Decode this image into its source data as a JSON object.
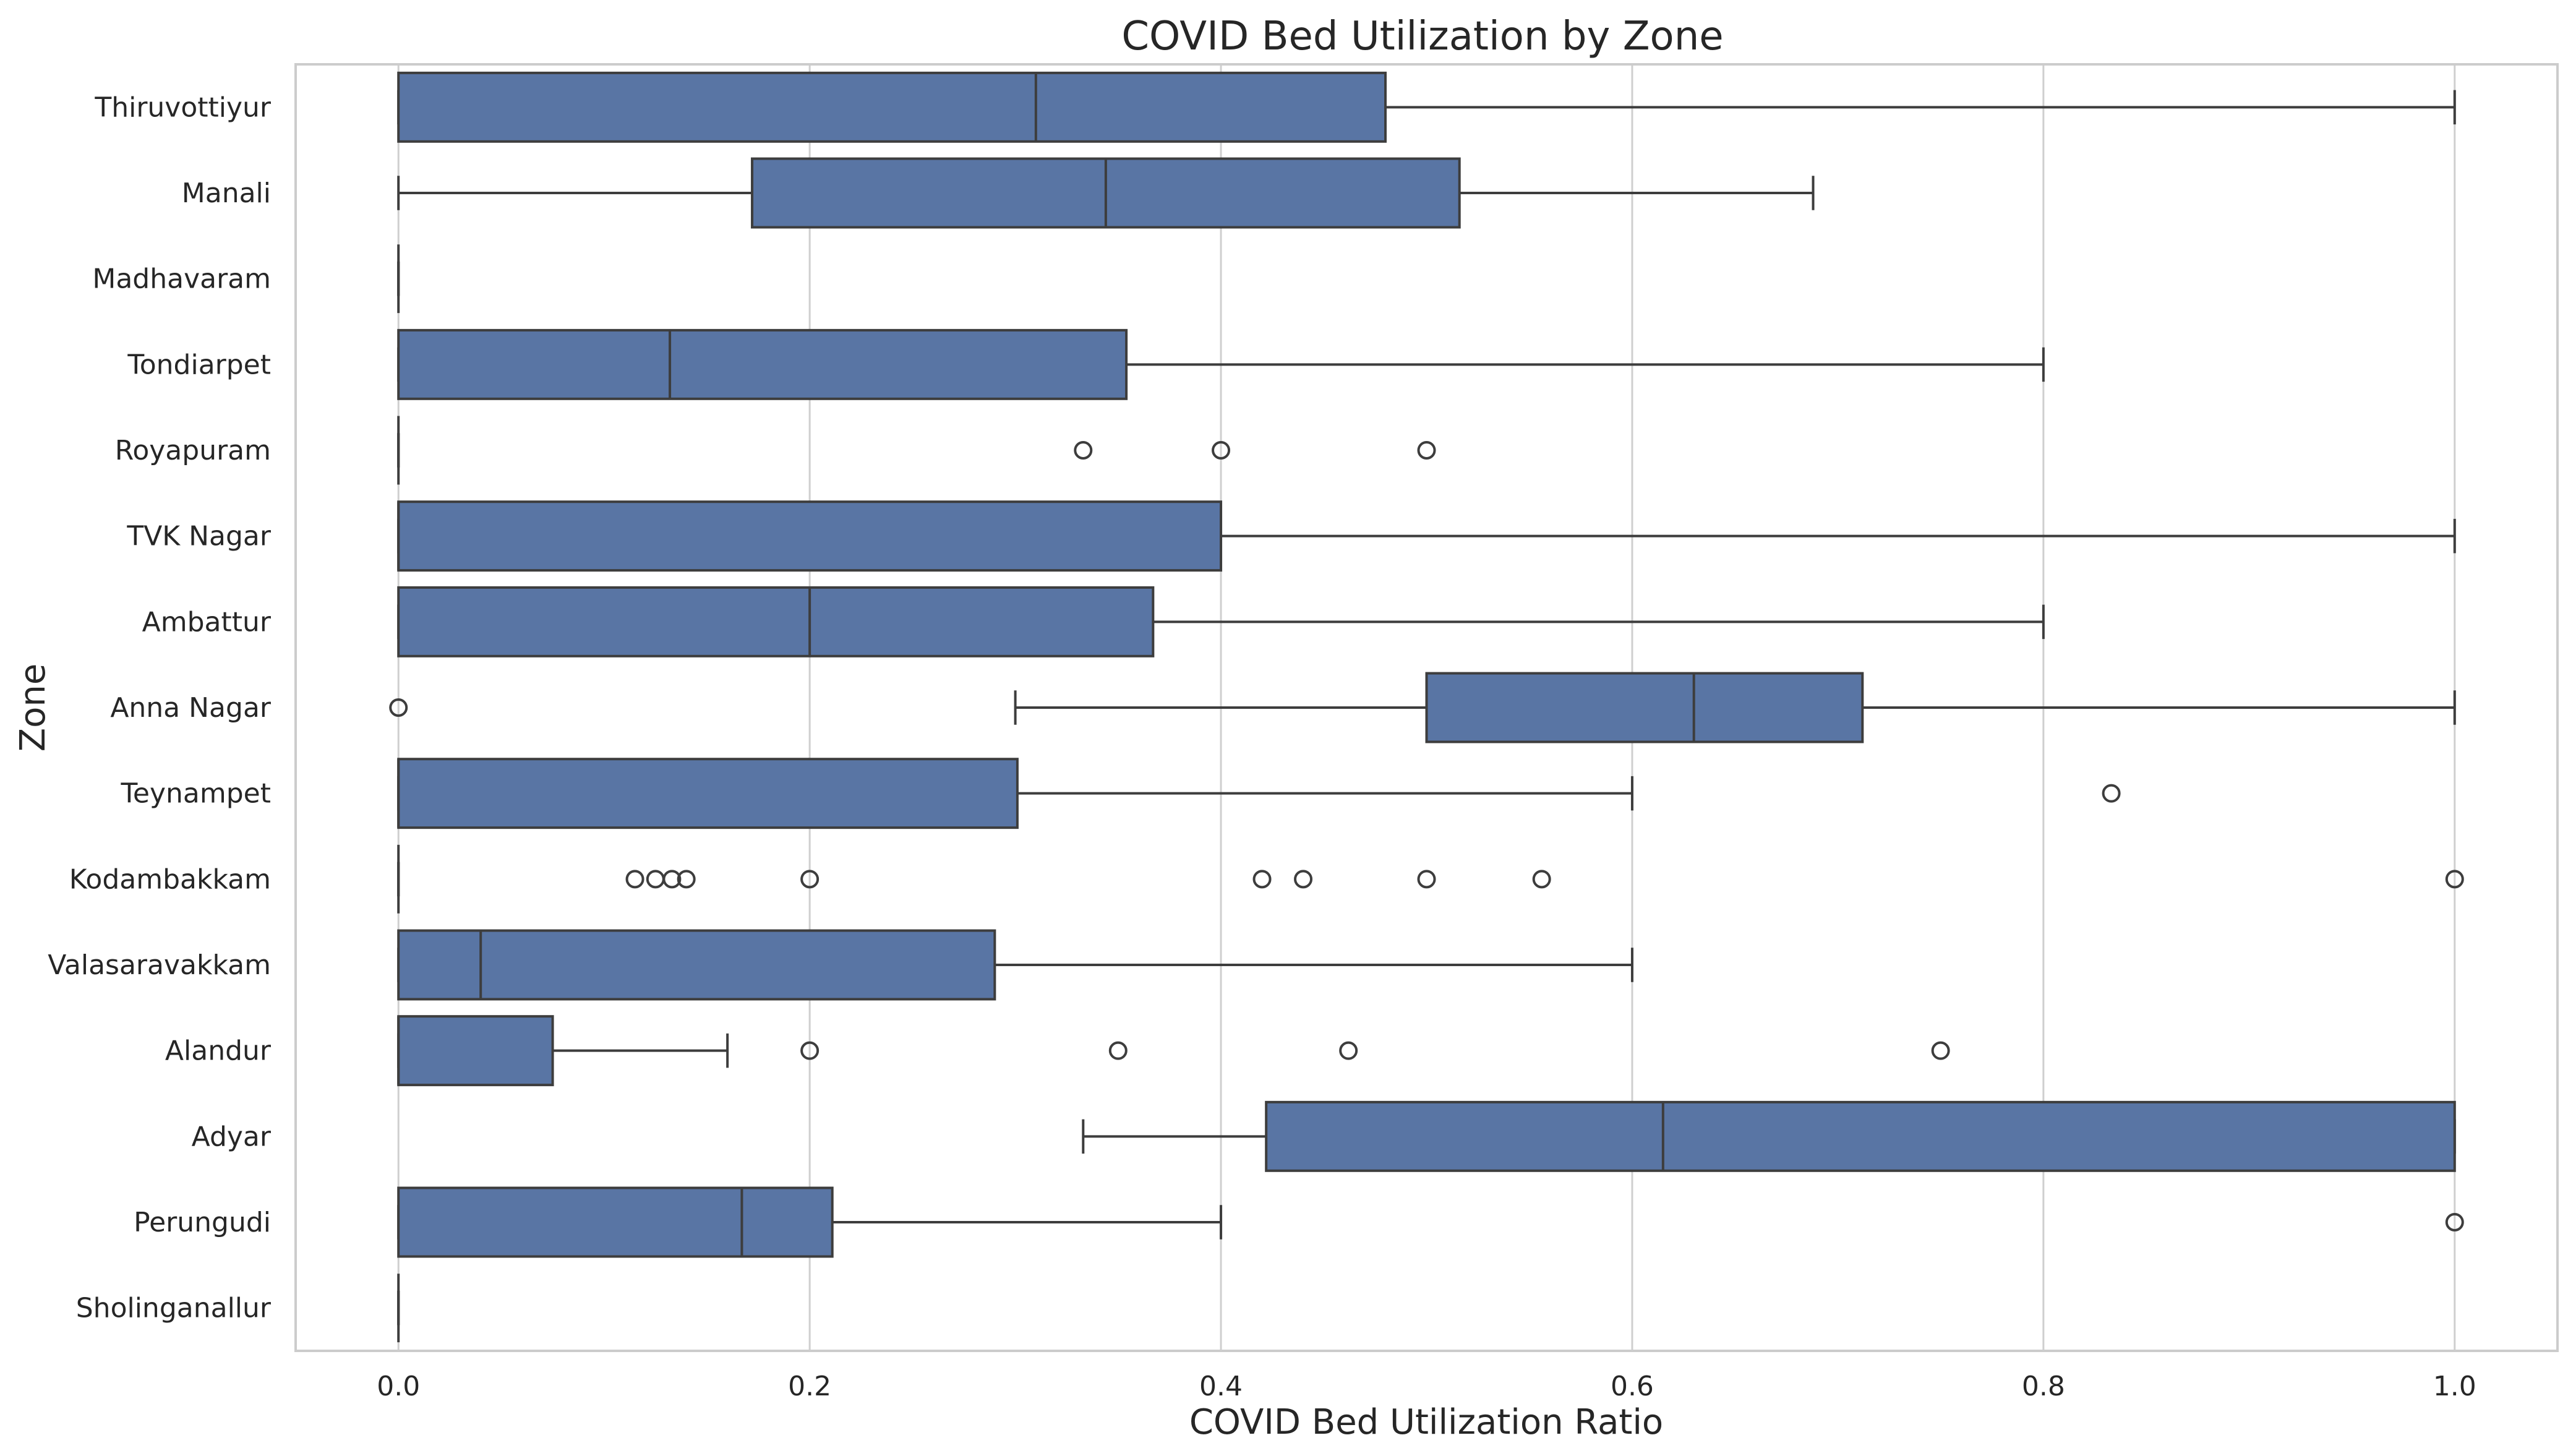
{
  "chart_data": {
    "type": "boxplot",
    "title": "COVID Bed Utilization by Zone",
    "xlabel": "COVID Bed Utilization Ratio",
    "ylabel": "Zone",
    "xlim": [
      -0.05,
      1.05
    ],
    "xticks": [
      0.0,
      0.2,
      0.4,
      0.6,
      0.8,
      1.0
    ],
    "xtick_labels": [
      "0.0",
      "0.2",
      "0.4",
      "0.6",
      "0.8",
      "1.0"
    ],
    "grid": true,
    "colors": {
      "box": "#5975a4",
      "line": "#3d3d3d",
      "grid": "#cfcfcf",
      "frame": "#cccccc"
    },
    "categories": [
      "Thiruvottiyur",
      "Manali",
      "Madhavaram",
      "Tondiarpet",
      "Royapuram",
      "TVK Nagar",
      "Ambattur",
      "Anna Nagar",
      "Teynampet",
      "Kodambakkam",
      "Valasaravakkam",
      "Alandur",
      "Adyar",
      "Perungudi",
      "Sholinganallur"
    ],
    "boxes": [
      {
        "whislo": 0.0,
        "q1": 0.0,
        "med": 0.31,
        "q3": 0.48,
        "whishi": 1.0,
        "fliers": []
      },
      {
        "whislo": 0.0,
        "q1": 0.172,
        "med": 0.344,
        "q3": 0.516,
        "whishi": 0.688,
        "fliers": []
      },
      {
        "whislo": 0.0,
        "q1": 0.0,
        "med": 0.0,
        "q3": 0.0,
        "whishi": 0.0,
        "fliers": []
      },
      {
        "whislo": 0.0,
        "q1": 0.0,
        "med": 0.132,
        "q3": 0.354,
        "whishi": 0.8,
        "fliers": []
      },
      {
        "whislo": 0.0,
        "q1": 0.0,
        "med": 0.0,
        "q3": 0.0,
        "whishi": 0.0,
        "fliers": [
          0.333,
          0.4,
          0.5
        ]
      },
      {
        "whislo": 0.0,
        "q1": 0.0,
        "med": 0.0,
        "q3": 0.4,
        "whishi": 1.0,
        "fliers": []
      },
      {
        "whislo": 0.0,
        "q1": 0.0,
        "med": 0.2,
        "q3": 0.367,
        "whishi": 0.8,
        "fliers": []
      },
      {
        "whislo": 0.3,
        "q1": 0.5,
        "med": 0.63,
        "q3": 0.712,
        "whishi": 1.0,
        "fliers": [
          0.0
        ]
      },
      {
        "whislo": 0.0,
        "q1": 0.0,
        "med": 0.0,
        "q3": 0.301,
        "whishi": 0.6,
        "fliers": [
          0.833
        ]
      },
      {
        "whislo": 0.0,
        "q1": 0.0,
        "med": 0.0,
        "q3": 0.0,
        "whishi": 0.0,
        "fliers": [
          0.115,
          0.125,
          0.133,
          0.14,
          0.2,
          0.42,
          0.44,
          0.5,
          0.556,
          1.0
        ]
      },
      {
        "whislo": 0.0,
        "q1": 0.0,
        "med": 0.04,
        "q3": 0.29,
        "whishi": 0.6,
        "fliers": []
      },
      {
        "whislo": 0.0,
        "q1": 0.0,
        "med": 0.0,
        "q3": 0.075,
        "whishi": 0.16,
        "fliers": [
          0.2,
          0.35,
          0.462,
          0.75
        ]
      },
      {
        "whislo": 0.333,
        "q1": 0.422,
        "med": 0.615,
        "q3": 1.0,
        "whishi": 1.0,
        "fliers": []
      },
      {
        "whislo": 0.0,
        "q1": 0.0,
        "med": 0.167,
        "q3": 0.211,
        "whishi": 0.4,
        "fliers": [
          1.0
        ]
      },
      {
        "whislo": 0.0,
        "q1": 0.0,
        "med": 0.0,
        "q3": 0.0,
        "whishi": 0.0,
        "fliers": []
      }
    ]
  }
}
